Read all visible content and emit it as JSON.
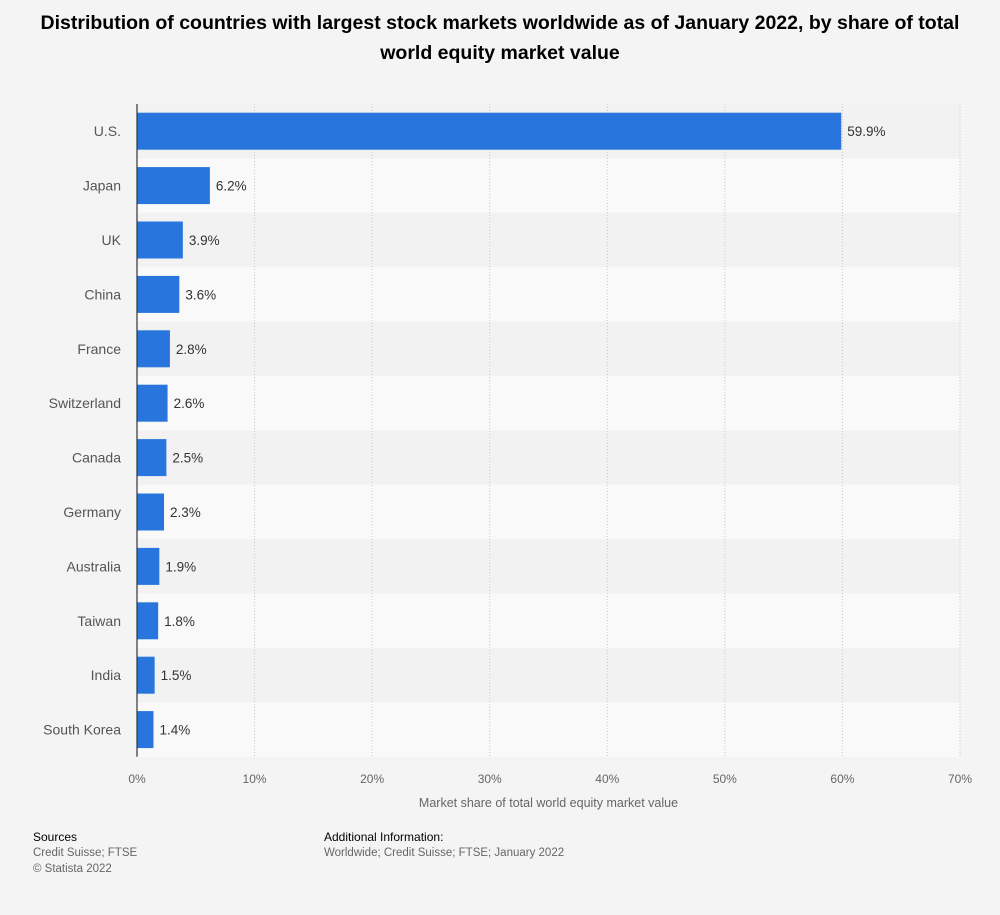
{
  "chart_data": {
    "type": "bar",
    "orientation": "horizontal",
    "title": "Distribution of countries with largest stock markets worldwide as of January 2022, by share of total world equity market value",
    "categories": [
      "U.S.",
      "Japan",
      "UK",
      "China",
      "France",
      "Switzerland",
      "Canada",
      "Germany",
      "Australia",
      "Taiwan",
      "India",
      "South Korea"
    ],
    "values": [
      59.9,
      6.2,
      3.9,
      3.6,
      2.8,
      2.6,
      2.5,
      2.3,
      1.9,
      1.8,
      1.5,
      1.4
    ],
    "value_labels": [
      "59.9%",
      "6.2%",
      "3.9%",
      "3.6%",
      "2.8%",
      "2.6%",
      "2.5%",
      "2.3%",
      "1.9%",
      "1.8%",
      "1.5%",
      "1.4%"
    ],
    "xlabel": "Market share of total world equity market value",
    "ylabel": "",
    "xlim": [
      0,
      70
    ],
    "xticks": [
      0,
      10,
      20,
      30,
      40,
      50,
      60,
      70
    ],
    "xtick_labels": [
      "0%",
      "10%",
      "20%",
      "30%",
      "40%",
      "50%",
      "60%",
      "70%"
    ],
    "bar_color": "#2876dd",
    "grid": true
  },
  "footer": {
    "sources_heading": "Sources",
    "sources_line1": "Credit Suisse; FTSE",
    "sources_line2": "© Statista 2022",
    "additional_heading": "Additional Information:",
    "additional_text": "Worldwide; Credit Suisse; FTSE; January 2022"
  }
}
